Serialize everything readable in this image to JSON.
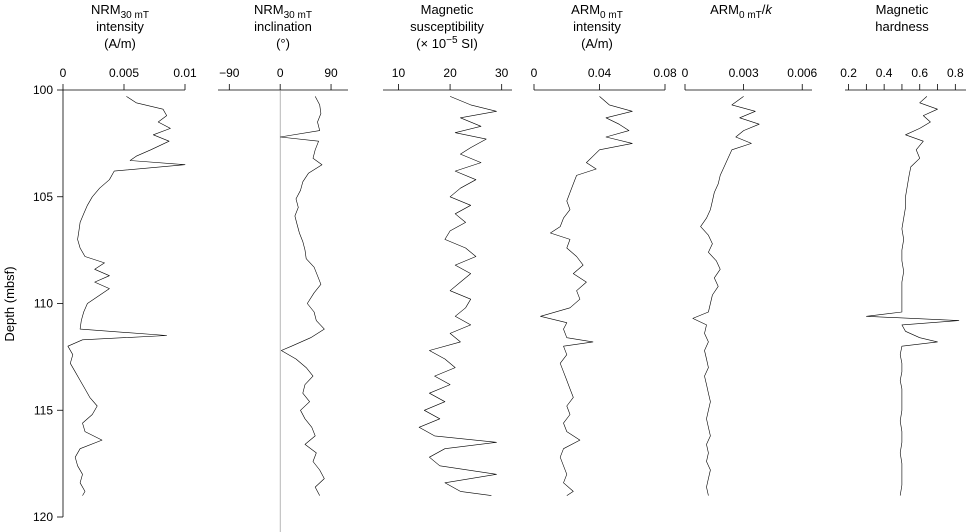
{
  "chart_data": {
    "type": "line",
    "orientation": "depth-down multi-panel well log",
    "depth_axis": {
      "label": "Depth (mbsf)",
      "range": [
        100,
        120
      ],
      "ticks": [
        100,
        105,
        110,
        115,
        120
      ],
      "tick_labels": [
        "100",
        "105",
        "110",
        "115",
        "120"
      ]
    },
    "panels": [
      {
        "id": "nrm-int",
        "title_lines": [
          {
            "text": "NRM",
            "sub": "30 mT"
          },
          {
            "text": "intensity"
          },
          {
            "text": "(A/m)"
          }
        ],
        "xlim": [
          0,
          0.01
        ],
        "ticks": [
          0,
          0.005,
          0.01
        ],
        "tick_labels": [
          "0",
          "0.005",
          "0.01"
        ],
        "series": {
          "depth": [
            100.3,
            100.6,
            100.9,
            101.2,
            101.5,
            101.8,
            102.1,
            102.4,
            102.8,
            103.1,
            103.3,
            103.5,
            103.8,
            104.2,
            104.6,
            105.0,
            105.4,
            105.8,
            106.2,
            106.6,
            107.0,
            107.4,
            107.8,
            108.1,
            108.4,
            108.7,
            109.0,
            109.3,
            110.0,
            110.4,
            110.8,
            111.2,
            111.5,
            111.7,
            112.0,
            112.4,
            112.8,
            113.2,
            113.6,
            114.0,
            114.4,
            114.8,
            115.2,
            115.6,
            116.0,
            116.4,
            116.8,
            117.2,
            117.6,
            118.0,
            118.4,
            118.8,
            119.0
          ],
          "value": [
            0.0052,
            0.006,
            0.0082,
            0.0085,
            0.0078,
            0.0088,
            0.0074,
            0.0087,
            0.0072,
            0.006,
            0.0055,
            0.01,
            0.0042,
            0.0038,
            0.003,
            0.0024,
            0.002,
            0.0017,
            0.0014,
            0.0013,
            0.0012,
            0.0014,
            0.0018,
            0.0034,
            0.0026,
            0.0038,
            0.0026,
            0.0038,
            0.002,
            0.0017,
            0.0015,
            0.0014,
            0.0085,
            0.0016,
            0.0004,
            0.0008,
            0.0006,
            0.001,
            0.0014,
            0.0018,
            0.0022,
            0.0028,
            0.0024,
            0.0016,
            0.0018,
            0.0032,
            0.0014,
            0.001,
            0.0012,
            0.0016,
            0.0014,
            0.0018,
            0.0016
          ]
        }
      },
      {
        "id": "nrm-inc",
        "title_lines": [
          {
            "text": "NRM",
            "sub": "30 mT"
          },
          {
            "text": "inclination"
          },
          {
            "text": "(°)"
          }
        ],
        "xlim": [
          -110,
          120
        ],
        "ticks": [
          -90,
          0,
          90
        ],
        "tick_labels": [
          "−90",
          "0",
          "90"
        ],
        "zero_line": 0,
        "series": {
          "depth": [
            100.3,
            100.7,
            101.1,
            101.5,
            101.9,
            102.2,
            102.4,
            102.8,
            103.2,
            103.5,
            103.9,
            104.3,
            104.7,
            105.1,
            105.5,
            105.9,
            106.3,
            106.7,
            107.1,
            107.5,
            107.9,
            108.3,
            108.7,
            109.1,
            109.5,
            110.0,
            110.4,
            110.8,
            111.2,
            111.6,
            112.0,
            112.2,
            112.6,
            113.0,
            113.4,
            113.8,
            114.2,
            114.6,
            115.0,
            115.4,
            115.8,
            116.2,
            116.6,
            117.0,
            117.4,
            117.8,
            118.2,
            118.6,
            119.0
          ],
          "value": [
            62,
            70,
            72,
            66,
            70,
            0,
            68,
            62,
            58,
            74,
            50,
            40,
            36,
            28,
            32,
            26,
            30,
            34,
            40,
            44,
            46,
            60,
            66,
            72,
            60,
            48,
            60,
            64,
            78,
            54,
            20,
            2,
            28,
            46,
            58,
            44,
            40,
            52,
            36,
            44,
            56,
            62,
            44,
            64,
            58,
            70,
            78,
            62,
            70
          ]
        }
      },
      {
        "id": "sus",
        "title_lines": [
          {
            "text": "Magnetic"
          },
          {
            "text": "susceptibility"
          },
          {
            "text": "(× 10",
            "sup": "−5",
            "after": " SI)"
          }
        ],
        "xlim": [
          7,
          32
        ],
        "ticks": [
          10,
          20,
          30
        ],
        "tick_labels": [
          "10",
          "20",
          "30"
        ],
        "series": {
          "depth": [
            100.3,
            100.7,
            101.0,
            101.3,
            101.7,
            102.0,
            102.3,
            102.7,
            103.0,
            103.4,
            103.8,
            104.2,
            104.6,
            105.0,
            105.4,
            105.8,
            106.2,
            106.6,
            107.0,
            107.4,
            107.8,
            108.2,
            108.6,
            109.0,
            109.4,
            109.8,
            110.2,
            110.6,
            111.0,
            111.4,
            111.8,
            112.2,
            112.6,
            113.0,
            113.4,
            113.8,
            114.2,
            114.6,
            115.0,
            115.4,
            115.8,
            116.2,
            116.5,
            116.8,
            117.2,
            117.6,
            118.0,
            118.4,
            118.8,
            119.0
          ],
          "value": [
            20,
            24,
            29,
            22,
            26,
            21,
            27,
            24,
            22,
            26,
            21,
            25,
            22,
            20,
            24,
            21,
            23,
            20,
            19,
            23,
            25,
            21,
            24,
            22,
            20,
            24,
            23,
            21,
            24,
            20,
            22,
            16,
            19,
            21,
            17,
            20,
            16,
            19,
            15,
            18,
            14,
            17,
            29,
            19,
            16,
            18,
            29,
            19,
            22,
            28
          ]
        }
      },
      {
        "id": "arm-int",
        "title_lines": [
          {
            "text": "ARM",
            "sub": "0 mT"
          },
          {
            "text": "intensity"
          },
          {
            "text": "(A/m)"
          }
        ],
        "xlim": [
          0,
          0.08
        ],
        "ticks": [
          0,
          0.04,
          0.08
        ],
        "tick_labels": [
          "0",
          "0.04",
          "0.08"
        ],
        "series": {
          "depth": [
            100.3,
            100.7,
            101.0,
            101.3,
            101.6,
            101.9,
            102.2,
            102.5,
            102.8,
            103.1,
            103.4,
            103.7,
            104.0,
            104.4,
            104.8,
            105.2,
            105.6,
            106.0,
            106.4,
            106.7,
            107.0,
            107.4,
            107.8,
            108.2,
            108.6,
            109.0,
            109.4,
            109.8,
            110.2,
            110.6,
            110.9,
            111.2,
            111.6,
            111.8,
            112.0,
            112.4,
            112.8,
            113.2,
            113.6,
            114.0,
            114.4,
            114.8,
            115.2,
            115.6,
            116.0,
            116.4,
            116.8,
            117.2,
            117.6,
            118.0,
            118.4,
            118.8,
            119.0
          ],
          "value": [
            0.04,
            0.046,
            0.06,
            0.044,
            0.052,
            0.058,
            0.044,
            0.06,
            0.04,
            0.036,
            0.032,
            0.038,
            0.026,
            0.024,
            0.022,
            0.02,
            0.022,
            0.018,
            0.016,
            0.01,
            0.022,
            0.02,
            0.026,
            0.03,
            0.024,
            0.032,
            0.026,
            0.028,
            0.022,
            0.004,
            0.02,
            0.018,
            0.02,
            0.036,
            0.018,
            0.02,
            0.016,
            0.018,
            0.02,
            0.022,
            0.024,
            0.02,
            0.022,
            0.018,
            0.02,
            0.028,
            0.018,
            0.016,
            0.018,
            0.02,
            0.018,
            0.024,
            0.02
          ]
        }
      },
      {
        "id": "arm-k",
        "title_lines": [
          {
            "text": "ARM",
            "sub": "0 mT",
            "after": "/",
            "italic_after": "k"
          }
        ],
        "xlim": [
          0,
          0.0065
        ],
        "ticks": [
          0,
          0.003,
          0.006
        ],
        "tick_labels": [
          "0",
          "0.003",
          "0.006"
        ],
        "series": {
          "depth": [
            100.3,
            100.7,
            101.0,
            101.3,
            101.6,
            101.9,
            102.2,
            102.5,
            102.8,
            103.2,
            103.6,
            104.0,
            104.4,
            104.8,
            105.2,
            105.6,
            106.0,
            106.4,
            106.8,
            107.2,
            107.6,
            108.0,
            108.4,
            108.8,
            109.2,
            109.6,
            110.0,
            110.4,
            110.7,
            111.0,
            111.4,
            111.8,
            112.2,
            112.6,
            113.0,
            113.4,
            113.8,
            114.2,
            114.6,
            115.0,
            115.4,
            115.8,
            116.2,
            116.6,
            117.0,
            117.4,
            117.8,
            118.2,
            118.6,
            119.0
          ],
          "value": [
            0.003,
            0.0024,
            0.0036,
            0.0028,
            0.0038,
            0.003,
            0.0026,
            0.0034,
            0.0024,
            0.0022,
            0.002,
            0.0018,
            0.0017,
            0.0015,
            0.0014,
            0.0013,
            0.0011,
            0.0008,
            0.0012,
            0.0014,
            0.0012,
            0.0016,
            0.0018,
            0.0015,
            0.0017,
            0.0014,
            0.0013,
            0.0012,
            0.0004,
            0.0011,
            0.001,
            0.0012,
            0.001,
            0.0011,
            0.0012,
            0.001,
            0.0011,
            0.0012,
            0.0013,
            0.0012,
            0.0011,
            0.0012,
            0.0013,
            0.0011,
            0.0012,
            0.0011,
            0.0013,
            0.0012,
            0.0011,
            0.0012
          ]
        }
      },
      {
        "id": "hard",
        "title_lines": [
          {
            "text": "Magnetic"
          },
          {
            "text": "hardness"
          }
        ],
        "xlim": [
          0.18,
          0.86
        ],
        "ticks": [
          0.2,
          0.3,
          0.4,
          0.5,
          0.6,
          0.7,
          0.8
        ],
        "tick_labels": [
          "0.2",
          "",
          "0.4",
          "",
          "0.6",
          "",
          "0.8"
        ],
        "series": {
          "depth": [
            100.3,
            100.6,
            100.9,
            101.2,
            101.5,
            101.8,
            102.1,
            102.4,
            102.8,
            103.2,
            103.6,
            104.0,
            104.5,
            105.0,
            105.5,
            106.0,
            106.5,
            107.0,
            107.5,
            108.0,
            108.5,
            109.0,
            109.5,
            110.0,
            110.4,
            110.6,
            110.8,
            111.0,
            111.3,
            111.6,
            111.8,
            112.0,
            112.4,
            112.8,
            113.2,
            113.6,
            114.0,
            114.5,
            115.0,
            115.5,
            116.0,
            116.5,
            117.0,
            117.5,
            118.0,
            118.5,
            119.0
          ],
          "value": [
            0.64,
            0.6,
            0.7,
            0.62,
            0.66,
            0.6,
            0.52,
            0.62,
            0.58,
            0.6,
            0.55,
            0.54,
            0.53,
            0.52,
            0.52,
            0.51,
            0.5,
            0.51,
            0.5,
            0.5,
            0.51,
            0.5,
            0.5,
            0.5,
            0.5,
            0.3,
            0.82,
            0.5,
            0.52,
            0.6,
            0.7,
            0.5,
            0.49,
            0.5,
            0.5,
            0.49,
            0.5,
            0.5,
            0.5,
            0.49,
            0.5,
            0.5,
            0.49,
            0.5,
            0.5,
            0.5,
            0.49
          ]
        }
      }
    ]
  }
}
